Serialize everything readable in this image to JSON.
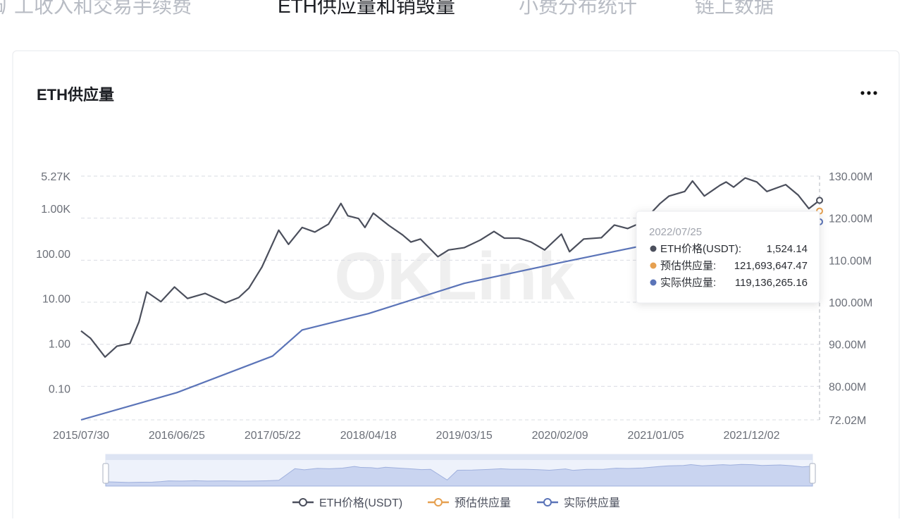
{
  "tabs": {
    "items": [
      "矿工收入和交易手续费",
      "ETH供应量和销毁量",
      "小费分布统计",
      "链上数据"
    ],
    "active": 1
  },
  "card": {
    "title": "ETH供应量"
  },
  "chart_data": {
    "type": "line",
    "watermark": "OKLink",
    "ylog": true,
    "ylim": [
      0.02,
      5270
    ],
    "yticks": [
      {
        "value": 0.1,
        "label": "0.10"
      },
      {
        "value": 1,
        "label": "1.00"
      },
      {
        "value": 10,
        "label": "10.00"
      },
      {
        "value": 100,
        "label": "100.00"
      },
      {
        "value": 1000,
        "label": "1.00K"
      },
      {
        "value": 5270,
        "label": "5.27K"
      }
    ],
    "y2lim": [
      72020000,
      130000000
    ],
    "y2ticks": [
      {
        "value": 72020000,
        "label": "72.02M"
      },
      {
        "value": 80000000,
        "label": "80.00M"
      },
      {
        "value": 90000000,
        "label": "90.00M"
      },
      {
        "value": 100000000,
        "label": "100.00M"
      },
      {
        "value": 110000000,
        "label": "110.00M"
      },
      {
        "value": 120000000,
        "label": "120.00M"
      },
      {
        "value": 130000000,
        "label": "130.00M"
      }
    ],
    "xlim": [
      "2015/07/30",
      "2022/07/25"
    ],
    "xticks": [
      "2015/07/30",
      "2016/06/25",
      "2017/05/22",
      "2018/04/18",
      "2019/03/15",
      "2020/02/09",
      "2021/01/05",
      "2021/12/02"
    ],
    "grid": true,
    "series": [
      {
        "name": "ETH价格(USDT)",
        "color": "#4b4f5c",
        "axis": "y",
        "x": [
          "2015/07/30",
          "2015/09/01",
          "2015/10/21",
          "2015/12/01",
          "2016/01/15",
          "2016/02/15",
          "2016/03/13",
          "2016/05/01",
          "2016/06/17",
          "2016/08/01",
          "2016/10/01",
          "2016/12/10",
          "2017/01/25",
          "2017/03/01",
          "2017/04/15",
          "2017/06/12",
          "2017/07/16",
          "2017/09/01",
          "2017/10/15",
          "2017/12/01",
          "2018/01/13",
          "2018/02/06",
          "2018/03/15",
          "2018/04/06",
          "2018/05/05",
          "2018/06/28",
          "2018/08/14",
          "2018/09/12",
          "2018/10/15",
          "2018/12/14",
          "2019/01/20",
          "2019/03/15",
          "2019/05/10",
          "2019/06/26",
          "2019/08/01",
          "2019/09/20",
          "2019/11/01",
          "2019/12/18",
          "2020/02/14",
          "2020/03/13",
          "2020/05/01",
          "2020/07/01",
          "2020/08/15",
          "2020/09/30",
          "2020/11/20",
          "2021/01/20",
          "2021/02/20",
          "2021/04/15",
          "2021/05/12",
          "2021/06/22",
          "2021/08/15",
          "2021/09/05",
          "2021/10/01",
          "2021/11/10",
          "2021/12/20",
          "2022/01/24",
          "2022/03/30",
          "2022/05/12",
          "2022/06/18",
          "2022/07/25"
        ],
        "values": [
          1.9,
          1.3,
          0.5,
          0.87,
          1.0,
          3,
          14,
          8.5,
          18,
          10,
          13,
          8,
          10.5,
          17,
          50,
          330,
          160,
          380,
          300,
          450,
          1300,
          690,
          600,
          380,
          790,
          420,
          260,
          180,
          210,
          85,
          120,
          135,
          200,
          310,
          220,
          220,
          180,
          120,
          270,
          110,
          210,
          225,
          430,
          360,
          500,
          1300,
          1900,
          2400,
          4100,
          1900,
          3300,
          3900,
          3000,
          4800,
          3900,
          2400,
          3400,
          2000,
          1000,
          1524.14
        ]
      },
      {
        "name": "预估供应量",
        "color": "#e6a050",
        "axis": "y2",
        "x": [
          "2022/07/25"
        ],
        "values": [
          121693647.47
        ]
      },
      {
        "name": "实际供应量",
        "color": "#5b74b8",
        "axis": "y2",
        "x": [
          "2015/07/30",
          "2016/06/25",
          "2017/05/22",
          "2017/09/01",
          "2018/04/18",
          "2019/03/15",
          "2020/02/09",
          "2021/01/05",
          "2022/07/25"
        ],
        "values": [
          72020000,
          78500000,
          87200000,
          93400000,
          97300000,
          104500000,
          109400000,
          114100000,
          119136265.16
        ]
      }
    ],
    "tooltip": {
      "date": "2022/07/25",
      "items": [
        {
          "label": "ETH价格(USDT):",
          "value": "1,524.14"
        },
        {
          "label": "预估供应量:",
          "value": "121,693,647.47"
        },
        {
          "label": "实际供应量:",
          "value": "119,136,265.16"
        }
      ]
    }
  }
}
